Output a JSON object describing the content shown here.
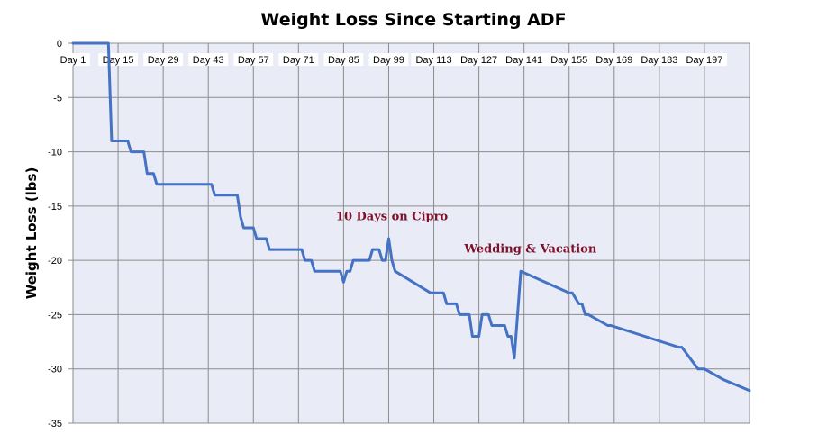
{
  "chart_data": {
    "type": "line",
    "title": "Weight Loss Since Starting ADF",
    "xlabel": "",
    "ylabel": "Weight Loss (lbs)",
    "ylim": [
      -35,
      0
    ],
    "yticks": [
      0,
      -5,
      -10,
      -15,
      -20,
      -25,
      -30,
      -35
    ],
    "xlim": [
      1,
      211
    ],
    "categories": [
      "Day 1",
      "Day 15",
      "Day 29",
      "Day 43",
      "Day 57",
      "Day 71",
      "Day 85",
      "Day 99",
      "Day 113",
      "Day 127",
      "Day 141",
      "Day 155",
      "Day 169",
      "Day 183",
      "Day 197"
    ],
    "category_days": [
      1,
      15,
      29,
      43,
      57,
      71,
      85,
      99,
      113,
      127,
      141,
      155,
      169,
      183,
      197
    ],
    "grid": true,
    "plot_background": "#e9ecf6",
    "grid_color": "#8c8c8c",
    "series": [
      {
        "name": "Weight Loss",
        "color": "#4472c4",
        "x": [
          1,
          12,
          13,
          18,
          19,
          23,
          24,
          26,
          27,
          44,
          45,
          52,
          53,
          54,
          57,
          58,
          61,
          62,
          72,
          73,
          75,
          76,
          84,
          85,
          86,
          87,
          88,
          93,
          94,
          96,
          97,
          98,
          99,
          100,
          101,
          112,
          113,
          116,
          117,
          120,
          121,
          124,
          125,
          127,
          128,
          130,
          131,
          135,
          136,
          137,
          138,
          139,
          140,
          155,
          156,
          158,
          159,
          160,
          161,
          167,
          168,
          189,
          190,
          195,
          196,
          197,
          203,
          211
        ],
        "y": [
          0,
          0,
          -9,
          -9,
          -10,
          -10,
          -12,
          -12,
          -13,
          -13,
          -14,
          -14,
          -16,
          -17,
          -17,
          -18,
          -18,
          -19,
          -19,
          -20,
          -20,
          -21,
          -21,
          -22,
          -21,
          -21,
          -20,
          -20,
          -19,
          -19,
          -20,
          -20,
          -18,
          -20,
          -21,
          -23,
          -23,
          -23,
          -24,
          -24,
          -25,
          -25,
          -27,
          -27,
          -25,
          -25,
          -26,
          -26,
          -27,
          -27,
          -29,
          -25,
          -21,
          -23,
          -23,
          -24,
          -24,
          -25,
          -25,
          -26,
          -26,
          -28,
          -28,
          -30,
          -30,
          -30,
          -31,
          -32
        ]
      }
    ],
    "annotations": [
      {
        "text": "10 Days on Cipro",
        "x": 100,
        "y": -16.3,
        "color": "#7f0f2a"
      },
      {
        "text": "Wedding & Vacation",
        "x": 143,
        "y": -19.3,
        "color": "#7f0f2a"
      }
    ]
  }
}
